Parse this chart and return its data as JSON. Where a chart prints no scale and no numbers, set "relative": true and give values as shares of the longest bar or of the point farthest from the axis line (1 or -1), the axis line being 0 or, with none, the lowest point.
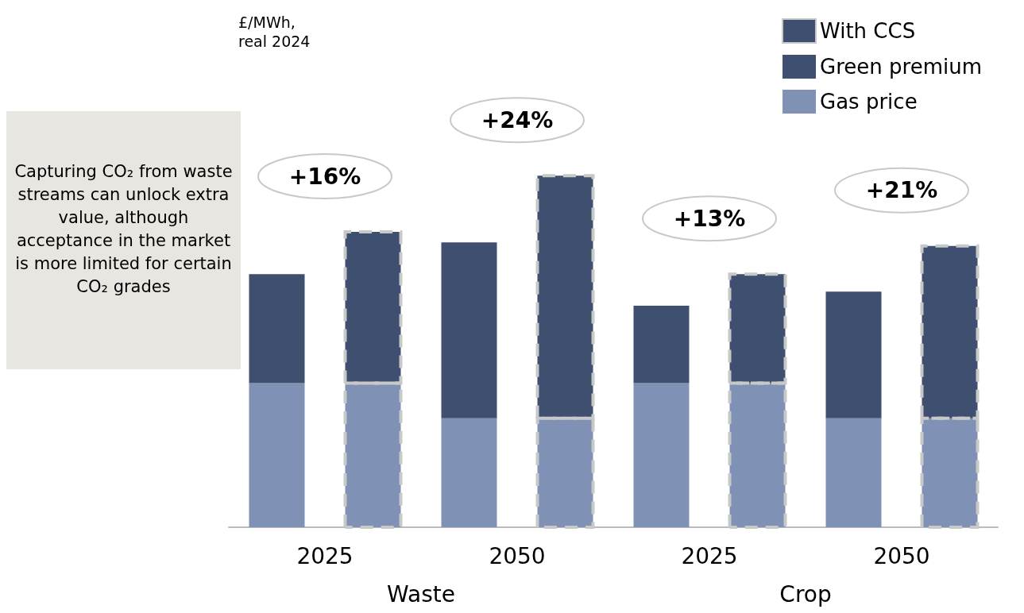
{
  "chart_data": {
    "type": "bar",
    "stacked": true,
    "relative": true,
    "categories": [
      null,
      "2025",
      null,
      "2050",
      null,
      "2025",
      null,
      "2050"
    ],
    "series": [
      {
        "name": "Gas price",
        "color": "#7f91b5",
        "values": [
          0.41,
          0.41,
          0.31,
          0.31,
          0.41,
          0.41,
          0.31,
          0.31
        ]
      },
      {
        "name": "Green premium",
        "color": "#3f4f6f",
        "values": [
          0.31,
          null,
          0.5,
          null,
          0.22,
          null,
          0.36,
          null
        ]
      },
      {
        "name": "With CCS",
        "color": "#3f4f6f",
        "values": [
          null,
          0.43,
          null,
          0.69,
          null,
          0.31,
          null,
          0.49
        ]
      }
    ],
    "annotations": [
      "£/MWh,\nreal 2024",
      "Capturing CO₂ from waste streams can unlock extra value, although acceptance in the market is more limited for certain CO₂ grades",
      "Waste",
      "Crop",
      "+16%",
      "+24%",
      "+13%",
      "+21%"
    ],
    "legend": "top right"
  }
}
